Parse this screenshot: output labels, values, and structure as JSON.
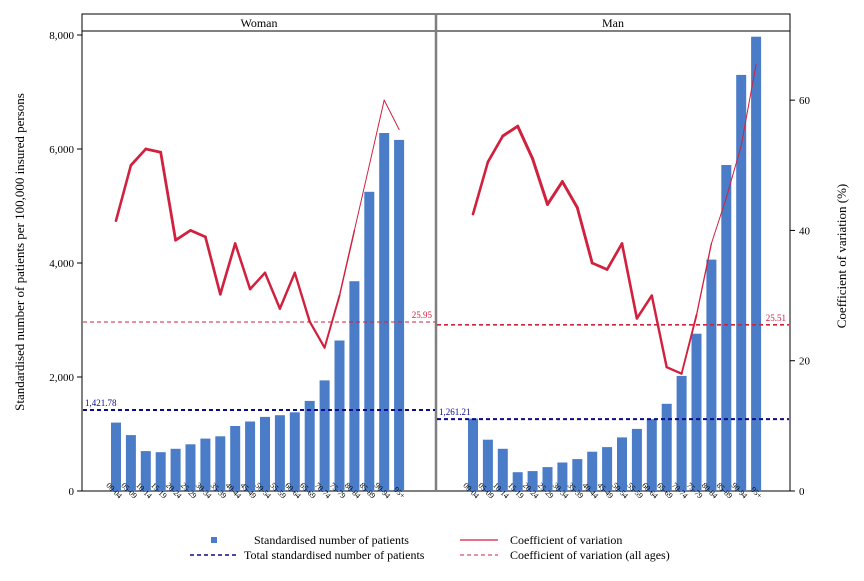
{
  "chart_data": {
    "type": "bar+line",
    "y_left_label": "Standardised number of patients per 100,000 insured persons",
    "y_right_label": "Coefficient of variation (%)",
    "y_left_lim": [
      0,
      8000
    ],
    "y_left_ticks": [
      "0",
      "2,000",
      "4,000",
      "6,000",
      "8,000"
    ],
    "y_left_tick_values": [
      0,
      2000,
      4000,
      6000,
      8000
    ],
    "y_right_lim": [
      0,
      70
    ],
    "y_right_ticks": [
      "0",
      "20",
      "40",
      "60"
    ],
    "y_right_tick_values": [
      0,
      20,
      40,
      60
    ],
    "categories": [
      "00-04",
      "05-09",
      "10-14",
      "15-19",
      "20-24",
      "25-29",
      "30-34",
      "35-39",
      "40-44",
      "45-49",
      "50-54",
      "55-59",
      "60-64",
      "65-69",
      "70-74",
      "75-79",
      "80-84",
      "85-89",
      "90-94",
      "95+"
    ],
    "panels": [
      {
        "title": "Woman",
        "bars": [
          1200,
          980,
          700,
          680,
          740,
          820,
          920,
          960,
          1140,
          1220,
          1300,
          1330,
          1380,
          1580,
          1940,
          2640,
          3680,
          5250,
          6280,
          6160
        ],
        "cv": [
          41.5,
          50.0,
          52.5,
          52.0,
          38.5,
          40.0,
          39.0,
          30.2,
          38.0,
          31.0,
          33.5,
          28.0,
          33.5,
          26.0,
          22.0,
          30.0,
          40.0,
          50.0,
          60.0,
          55.5
        ],
        "total_line": 1421.78,
        "total_label": "1,421.78",
        "cv_all_ages": 25.95,
        "cv_all_label": "25.95"
      },
      {
        "title": "Man",
        "bars": [
          1270,
          900,
          740,
          330,
          350,
          420,
          500,
          560,
          690,
          770,
          940,
          1090,
          1260,
          1530,
          2020,
          2760,
          4060,
          5720,
          7300,
          7970
        ],
        "cv": [
          42.5,
          50.5,
          54.5,
          56.0,
          51.0,
          44.0,
          47.5,
          43.5,
          35.0,
          34.0,
          38.0,
          26.5,
          30.0,
          19.0,
          18.0,
          27.0,
          38.0,
          45.0,
          53.0,
          65.5
        ],
        "total_line": 1261.21,
        "total_label": "1,261.21",
        "cv_all_ages": 25.51,
        "cv_all_label": "25.51"
      }
    ],
    "legend": {
      "bars": "Standardised number of patients",
      "cv": "Coefficient of variation",
      "total": "Total standardised number of patients",
      "cv_all": "Coefficient of variation (all ages)"
    },
    "colors": {
      "bar": "#4a7cc7",
      "cv": "#d0213f",
      "total": "#0a0a8c",
      "cv_all": "#d0213f"
    }
  }
}
